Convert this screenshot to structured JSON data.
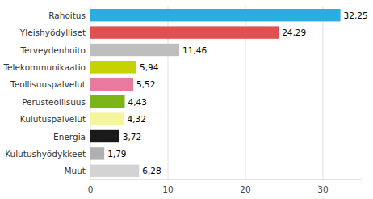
{
  "chart_data": {
    "type": "bar",
    "orientation": "horizontal",
    "categories": [
      "Muut",
      "Kulutushyödykkeet",
      "Energia",
      "Kulutuspalvelut",
      "Perusteollisuus",
      "Teollisuuspalvelut",
      "Telekommunikaatio",
      "Terveydenhoito",
      "Yleishyödylliset",
      "Rahoitus"
    ],
    "values": [
      6.28,
      1.79,
      3.72,
      4.32,
      4.43,
      5.52,
      5.94,
      11.46,
      24.29,
      32.25
    ],
    "value_labels": [
      "6,28",
      "1,79",
      "3,72",
      "4,32",
      "4,43",
      "5,52",
      "5,94",
      "11,46",
      "24,29",
      "32,25"
    ],
    "colors": [
      "#d3d3d3",
      "#b0b0b0",
      "#1a1a1a",
      "#f5f5a0",
      "#7cb518",
      "#e87aa0",
      "#c5d400",
      "#bebebe",
      "#e05050",
      "#29aee0"
    ],
    "xlim": [
      0,
      35
    ],
    "xticks": [
      0,
      10,
      20,
      30
    ],
    "grid": true,
    "data_labels": true
  }
}
